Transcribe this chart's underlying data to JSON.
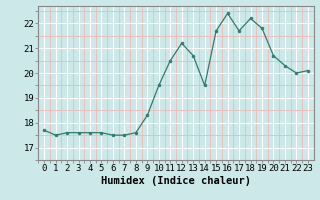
{
  "x": [
    0,
    1,
    2,
    3,
    4,
    5,
    6,
    7,
    8,
    9,
    10,
    11,
    12,
    13,
    14,
    15,
    16,
    17,
    18,
    19,
    20,
    21,
    22,
    23
  ],
  "y": [
    17.7,
    17.5,
    17.6,
    17.6,
    17.6,
    17.6,
    17.5,
    17.5,
    17.6,
    18.3,
    19.5,
    20.5,
    21.2,
    20.7,
    19.5,
    21.7,
    22.4,
    21.7,
    22.2,
    21.8,
    20.7,
    20.3,
    20.0,
    20.1
  ],
  "xlabel": "Humidex (Indice chaleur)",
  "ylim": [
    16.8,
    22.7
  ],
  "xlim": [
    -0.5,
    23.5
  ],
  "yticks": [
    17,
    18,
    19,
    20,
    21,
    22
  ],
  "xticks": [
    0,
    1,
    2,
    3,
    4,
    5,
    6,
    7,
    8,
    9,
    10,
    11,
    12,
    13,
    14,
    15,
    16,
    17,
    18,
    19,
    20,
    21,
    22,
    23
  ],
  "line_color": "#2e7d6e",
  "marker_color": "#2e7d6e",
  "bg_color": "#cce8e8",
  "grid_major_color": "#ffffff",
  "grid_minor_color": "#f0b8b8",
  "axis_color": "#888888",
  "xlabel_fontsize": 7.5,
  "tick_fontsize": 6.5
}
